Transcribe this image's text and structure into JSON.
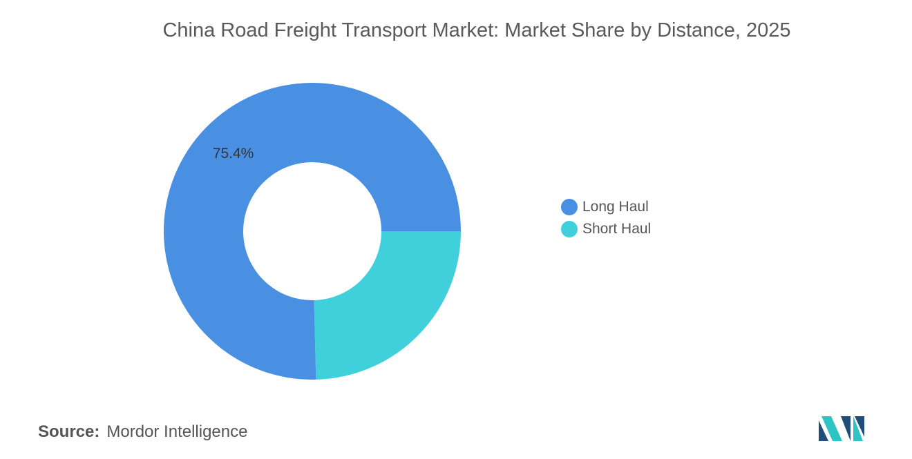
{
  "title": "China Road Freight Transport Market: Market Share by Distance, 2025",
  "source": {
    "label": "Source:",
    "text": "Mordor Intelligence"
  },
  "logo": {
    "icon": "mordor-intelligence-logo-icon",
    "colors": [
      "#1f4e79",
      "#2ec4c6"
    ]
  },
  "chart_data": {
    "type": "pie",
    "variant": "donut",
    "title": "China Road Freight Transport Market: Market Share by Distance, 2025",
    "slices": [
      {
        "name": "Long Haul",
        "value": 75.4,
        "color": "#4a90e2",
        "label": "75.4%"
      },
      {
        "name": "Short Haul",
        "value": 24.6,
        "color": "#40d0dc",
        "label": ""
      }
    ],
    "legend_position": "right"
  }
}
